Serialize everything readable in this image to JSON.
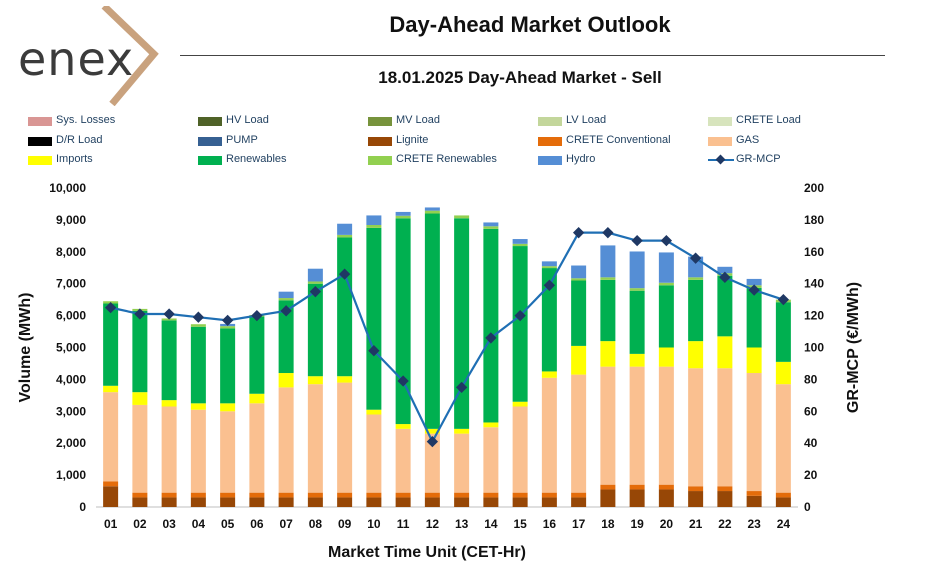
{
  "header": {
    "logo_text": "enex",
    "title": "Day-Ahead Market Outlook",
    "subtitle": "18.01.2025  Day-Ahead Market - Sell"
  },
  "legend": [
    {
      "label": "Sys. Losses",
      "color": "#d99694",
      "kind": "bar"
    },
    {
      "label": "HV Load",
      "color": "#4f6228",
      "kind": "bar"
    },
    {
      "label": "MV Load",
      "color": "#77933c",
      "kind": "bar"
    },
    {
      "label": "LV Load",
      "color": "#c3d69b",
      "kind": "bar"
    },
    {
      "label": "CRETE Load",
      "color": "#d7e4bd",
      "kind": "bar"
    },
    {
      "label": "D/R Load",
      "color": "#000000",
      "kind": "bar"
    },
    {
      "label": "PUMP",
      "color": "#366092",
      "kind": "bar"
    },
    {
      "label": "Lignite",
      "color": "#974706",
      "kind": "bar"
    },
    {
      "label": "CRETE Conventional",
      "color": "#e46c0a",
      "kind": "bar"
    },
    {
      "label": "GAS",
      "color": "#fac090",
      "kind": "bar"
    },
    {
      "label": "Imports",
      "color": "#ffff00",
      "kind": "bar"
    },
    {
      "label": "Renewables",
      "color": "#00b050",
      "kind": "bar"
    },
    {
      "label": "CRETE Renewables",
      "color": "#92d050",
      "kind": "bar"
    },
    {
      "label": "Hydro",
      "color": "#558ed5",
      "kind": "bar"
    },
    {
      "label": "GR-MCP",
      "color": "#1f6fb4",
      "kind": "line"
    }
  ],
  "chart_data": {
    "type": "bar",
    "stacked": true,
    "xlabel": "Market Time Unit (CET-Hr)",
    "ylabel": "Volume (MWh)",
    "y2label": "GR-MCP (€/MWh)",
    "ylim": [
      0,
      10000
    ],
    "y2lim": [
      0,
      200
    ],
    "yticks": [
      "0",
      "1,000",
      "2,000",
      "3,000",
      "4,000",
      "5,000",
      "6,000",
      "7,000",
      "8,000",
      "9,000",
      "10,000"
    ],
    "y2ticks": [
      "0",
      "20",
      "40",
      "60",
      "80",
      "100",
      "120",
      "140",
      "160",
      "180",
      "200"
    ],
    "categories": [
      "01",
      "02",
      "03",
      "04",
      "05",
      "06",
      "07",
      "08",
      "09",
      "10",
      "11",
      "12",
      "13",
      "14",
      "15",
      "16",
      "17",
      "18",
      "19",
      "20",
      "21",
      "22",
      "23",
      "24"
    ],
    "series": [
      {
        "name": "Lignite",
        "color": "#974706",
        "values": [
          650,
          300,
          300,
          300,
          300,
          300,
          300,
          300,
          300,
          300,
          300,
          300,
          300,
          300,
          300,
          300,
          300,
          550,
          550,
          550,
          500,
          500,
          350,
          300
        ]
      },
      {
        "name": "CRETE Conventional",
        "color": "#e46c0a",
        "values": [
          150,
          150,
          150,
          150,
          150,
          150,
          150,
          150,
          150,
          150,
          150,
          150,
          150,
          150,
          150,
          150,
          150,
          150,
          150,
          150,
          150,
          150,
          150,
          150
        ]
      },
      {
        "name": "GAS",
        "color": "#fac090",
        "values": [
          2800,
          2750,
          2700,
          2600,
          2550,
          2800,
          3300,
          3400,
          3450,
          2450,
          2000,
          1850,
          1850,
          2050,
          2700,
          3600,
          3700,
          3700,
          3700,
          3700,
          3700,
          3700,
          3700,
          3400
        ]
      },
      {
        "name": "Imports",
        "color": "#ffff00",
        "values": [
          200,
          400,
          200,
          200,
          250,
          300,
          450,
          250,
          200,
          150,
          150,
          150,
          150,
          150,
          150,
          200,
          900,
          800,
          400,
          600,
          850,
          1000,
          800,
          700
        ]
      },
      {
        "name": "Renewables",
        "color": "#00b050",
        "values": [
          2580,
          2550,
          2500,
          2400,
          2350,
          2420,
          2280,
          2900,
          4350,
          5700,
          6450,
          6750,
          6600,
          6070,
          4880,
          3240,
          2050,
          1920,
          1980,
          1950,
          1920,
          1900,
          1870,
          1870
        ]
      },
      {
        "name": "CRETE Renewables",
        "color": "#92d050",
        "values": [
          70,
          60,
          60,
          80,
          70,
          50,
          70,
          70,
          80,
          90,
          80,
          90,
          90,
          80,
          70,
          60,
          70,
          80,
          80,
          80,
          80,
          80,
          80,
          80
        ]
      },
      {
        "name": "Hydro",
        "color": "#558ed5",
        "values": [
          0,
          0,
          0,
          0,
          70,
          0,
          200,
          400,
          350,
          300,
          120,
          100,
          0,
          120,
          150,
          150,
          400,
          1000,
          1150,
          950,
          650,
          200,
          200,
          0
        ]
      }
    ],
    "line": {
      "name": "GR-MCP",
      "color": "#1f6fb4",
      "values": [
        125,
        121,
        121,
        119,
        117,
        120,
        123,
        135,
        146,
        98,
        79,
        41,
        75,
        106,
        120,
        139,
        172,
        172,
        167,
        167,
        156,
        144,
        136,
        130
      ]
    }
  }
}
